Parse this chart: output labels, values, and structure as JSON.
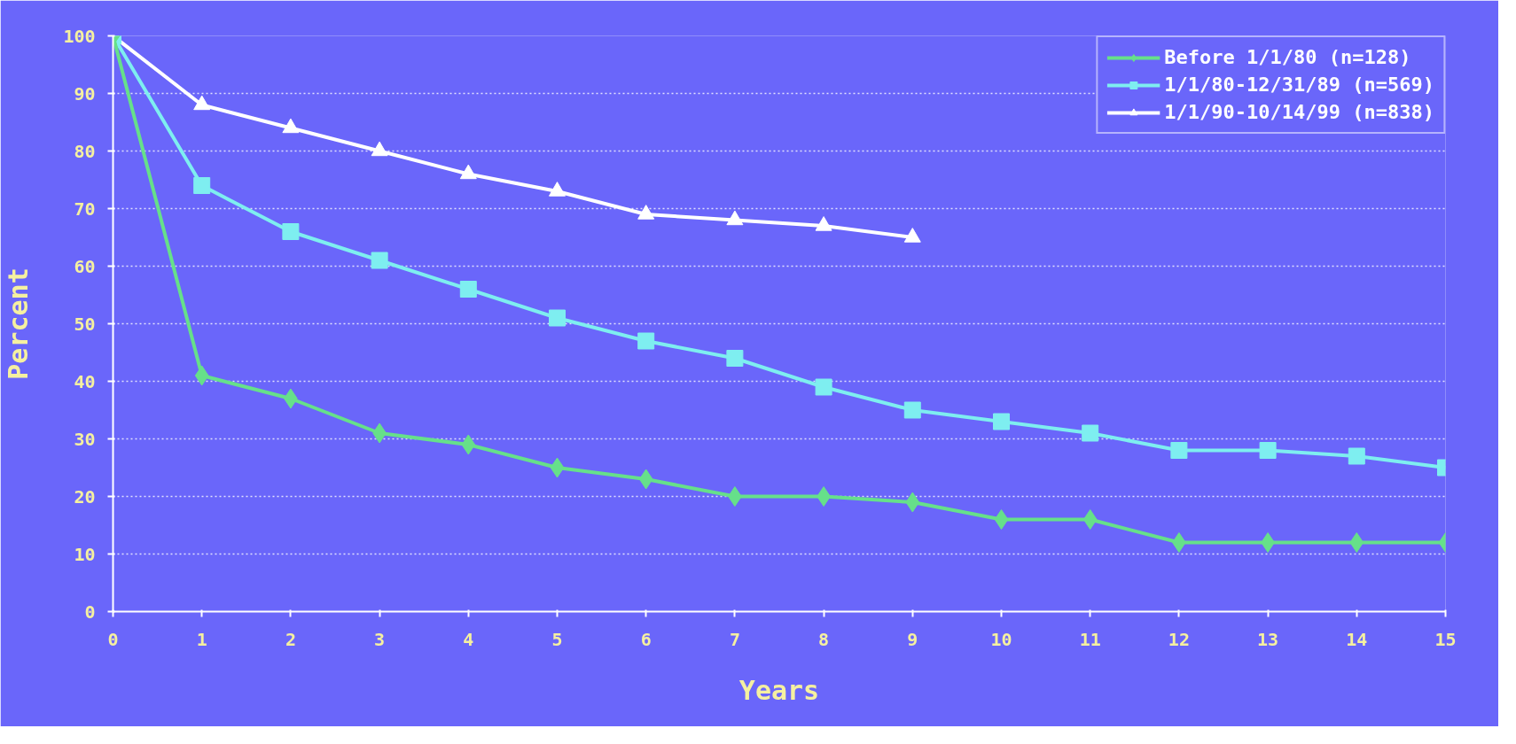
{
  "chart_data": {
    "type": "line",
    "xlabel": "Years",
    "ylabel": "Percent",
    "x": [
      0,
      1,
      2,
      3,
      4,
      5,
      6,
      7,
      8,
      9,
      10,
      11,
      12,
      13,
      14,
      15
    ],
    "series": [
      {
        "name": "Before 1/1/80 (n=128)",
        "color": "#66e08a",
        "marker": "diamond",
        "values": [
          100,
          41,
          37,
          31,
          29,
          25,
          23,
          20,
          20,
          19,
          16,
          16,
          12,
          12,
          12,
          12
        ]
      },
      {
        "name": "1/1/80-12/31/89 (n=569)",
        "color": "#7eeef0",
        "marker": "square",
        "values": [
          100,
          74,
          66,
          61,
          56,
          51,
          47,
          44,
          39,
          35,
          33,
          31,
          28,
          28,
          27,
          25
        ]
      },
      {
        "name": "1/1/90-10/14/99 (n=838)",
        "color": "#ffffff",
        "marker": "triangle",
        "values": [
          100,
          88,
          84,
          80,
          76,
          73,
          69,
          68,
          67,
          65,
          null,
          null,
          null,
          null,
          null,
          null
        ]
      }
    ],
    "xlim": [
      0,
      15
    ],
    "xticks": [
      0,
      1,
      2,
      3,
      4,
      5,
      6,
      7,
      8,
      9,
      10,
      11,
      12,
      13,
      14,
      15
    ],
    "ylim": [
      0,
      100
    ],
    "yticks": [
      0,
      10,
      20,
      30,
      40,
      50,
      60,
      70,
      80,
      90,
      100
    ],
    "grid": "y",
    "legend": "top right",
    "line_style": "solid"
  }
}
